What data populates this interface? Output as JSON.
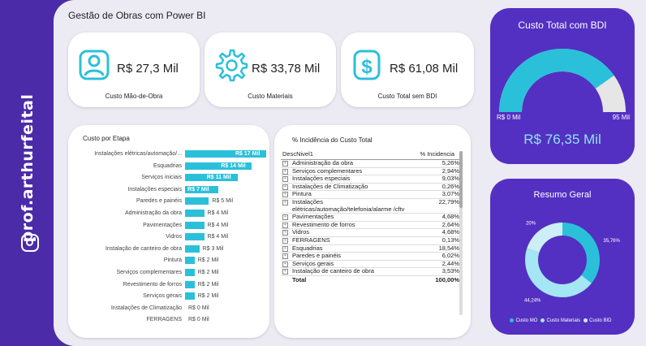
{
  "brand": {
    "handle": "prof.arthurfeital"
  },
  "dashboard_title": "Gestão de Obras com Power BI",
  "kpis": [
    {
      "value": "R$ 27,3 Mil",
      "label": "Custo Mão-de-Obra",
      "icon": "person-icon"
    },
    {
      "value": "R$ 33,78 Mil",
      "label": "Custo Materiais",
      "icon": "gear-icon"
    },
    {
      "value": "R$ 61,08 Mil",
      "label": "Custo Total sem BDI",
      "icon": "dollar-icon"
    }
  ],
  "gauge": {
    "title": "Custo Total  com BDI",
    "min_label": "R$ 0 Mil",
    "max_label": "95 Mil",
    "value_label": "R$ 76,35 Mil",
    "value": 76.35,
    "max": 95
  },
  "bar_panel": {
    "title": "Custo por Etapa"
  },
  "chart_data": [
    {
      "type": "bar",
      "title": "Custo por Etapa",
      "orientation": "horizontal",
      "categories": [
        "Instalações elétricas/automação/...",
        "Esquadrias",
        "Serviços iniciais",
        "Instalações especiais",
        "Paredes e painéis",
        "Administração da obra",
        "Pavimentações",
        "Vidros",
        "Instalação de canteiro de obra",
        "Pintura",
        "Serviços complementares",
        "Revestimento de forros",
        "Serviços gerais",
        "Instalações de Climatização",
        "FERRAGENS"
      ],
      "values": [
        17,
        14,
        11,
        7,
        5,
        4,
        4,
        4,
        3,
        2,
        2,
        2,
        2,
        0,
        0
      ],
      "data_labels": [
        "R$ 17 Mil",
        "R$ 14 Mil",
        "R$ 11 Mil",
        "R$ 7 Mil",
        "R$ 5 Mil",
        "R$ 4 Mil",
        "R$ 4 Mil",
        "R$ 4 Mil",
        "R$ 3 Mil",
        "R$ 2 Mil",
        "R$ 2 Mil",
        "R$ 2 Mil",
        "R$ 2 Mil",
        "R$ 0 Mil",
        "R$ 0 Mil"
      ],
      "color": "#2bc0d9"
    },
    {
      "type": "pie",
      "title": "Resumo Geral",
      "categories": [
        "Custo MO",
        "Custo Materiais",
        "Custo BID"
      ],
      "values": [
        35.76,
        44.24,
        20
      ],
      "data_labels": [
        "35,76%",
        "44,24%",
        "20%"
      ],
      "colors": [
        "#2bc0d9",
        "#a4e6f3",
        "#cdeef7"
      ]
    }
  ],
  "table": {
    "title": "% Incidência do Custo Total",
    "col1": "DescNivel1",
    "col2": "% Incidencia",
    "rows": [
      {
        "name": "Administração da obra",
        "pct": "5,26%"
      },
      {
        "name": "Serviços complementares",
        "pct": "2,94%"
      },
      {
        "name": "Instalações especiais",
        "pct": "9,03%"
      },
      {
        "name": "Instalações de Climatização",
        "pct": "0,26%"
      },
      {
        "name": "Pintura",
        "pct": "3,07%"
      },
      {
        "name": "Instalações elétricas/automação/telefonia/alarme /cftv",
        "pct": "22,79%"
      },
      {
        "name": "Pavimentações",
        "pct": "4,68%"
      },
      {
        "name": "Revestimento de forros",
        "pct": "2,64%"
      },
      {
        "name": "Vidros",
        "pct": "4,68%"
      },
      {
        "name": "FERRAGENS",
        "pct": "0,13%"
      },
      {
        "name": "Esquadrias",
        "pct": "18,54%"
      },
      {
        "name": "Paredes e painéis",
        "pct": "6,02%"
      },
      {
        "name": "Serviços gerais",
        "pct": "2,44%"
      },
      {
        "name": "Instalação de canteiro de obra",
        "pct": "3,53%"
      }
    ],
    "total_label": "Total",
    "total_value": "100,00%"
  },
  "donut": {
    "title": "Resumo Geral",
    "legend": [
      "Custo MO",
      "Custo Materiais",
      "Custo BID"
    ]
  },
  "colors": {
    "accent": "#2bc0d9",
    "purple": "#5330c2",
    "sidebar": "#4b2ba8"
  }
}
